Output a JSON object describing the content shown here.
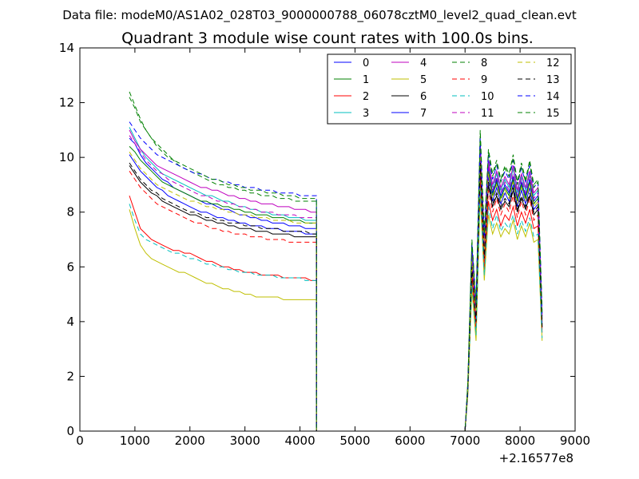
{
  "chart_data": {
    "type": "line",
    "suptitle": "Data file: modeM0/AS1A02_028T03_9000000788_06078cztM0_level2_quad_clean.evt",
    "title": "Quadrant 3 module wise count rates with 100.0s bins.",
    "xlabel": "",
    "ylabel": "",
    "x_offset_label": "+2.16577e8",
    "xlim": [
      0,
      9000
    ],
    "ylim": [
      0,
      14
    ],
    "x_ticks": [
      0,
      1000,
      2000,
      3000,
      4000,
      5000,
      6000,
      7000,
      8000,
      9000
    ],
    "x_tick_labels": [
      "0",
      "1000",
      "2000",
      "3000",
      "4000",
      "5000",
      "6000",
      "7000",
      "8000",
      "9000"
    ],
    "y_ticks": [
      0,
      2,
      4,
      6,
      8,
      10,
      12,
      14
    ],
    "y_tick_labels": [
      "0",
      "2",
      "4",
      "6",
      "8",
      "10",
      "12",
      "14"
    ],
    "grid": false,
    "legend_position": "top-right",
    "legend_columns": 4,
    "series": [
      {
        "name": "0",
        "color": "#0000ff",
        "dash": "solid",
        "pre": [
          10.7,
          10.5,
          10.1,
          9.8,
          9.6,
          9.4,
          9.2,
          9.1,
          8.9,
          8.8,
          8.7,
          8.6,
          8.5,
          8.4,
          8.3,
          8.3,
          8.2,
          8.1,
          8.1,
          8.0,
          7.9,
          7.9,
          7.8,
          7.8,
          7.7,
          7.7,
          7.6,
          7.6,
          7.6,
          7.5,
          7.5,
          7.5,
          7.4,
          7.4,
          7.4
        ],
        "post": [
          1.6,
          6.4,
          4.3,
          10.1,
          6.8,
          9.6,
          8.7,
          9.2,
          8.6,
          9.0,
          8.7,
          9.3,
          8.5,
          9.1,
          8.6,
          9.2,
          8.4,
          8.6,
          4.1
        ]
      },
      {
        "name": "1",
        "color": "#008000",
        "dash": "solid",
        "pre": [
          10.4,
          10.2,
          9.9,
          9.7,
          9.5,
          9.3,
          9.1,
          9.0,
          8.9,
          8.8,
          8.7,
          8.6,
          8.5,
          8.4,
          8.4,
          8.3,
          8.3,
          8.2,
          8.2,
          8.1,
          8.1,
          8.0,
          8.0,
          7.9,
          7.9,
          7.9,
          7.8,
          7.8,
          7.8,
          7.7,
          7.7,
          7.7,
          7.6,
          7.6,
          7.6
        ],
        "post": [
          1.6,
          6.3,
          4.2,
          10.2,
          6.7,
          9.5,
          8.6,
          9.1,
          8.5,
          8.9,
          8.6,
          9.2,
          8.4,
          9.0,
          8.5,
          9.1,
          8.3,
          8.5,
          4.0
        ]
      },
      {
        "name": "2",
        "color": "#ff0000",
        "dash": "solid",
        "pre": [
          8.6,
          8.0,
          7.4,
          7.2,
          7.0,
          6.9,
          6.8,
          6.7,
          6.6,
          6.6,
          6.5,
          6.5,
          6.4,
          6.3,
          6.2,
          6.2,
          6.1,
          6.0,
          6.0,
          5.9,
          5.9,
          5.8,
          5.8,
          5.8,
          5.7,
          5.7,
          5.7,
          5.7,
          5.6,
          5.6,
          5.6,
          5.6,
          5.6,
          5.5,
          5.5
        ],
        "post": [
          1.4,
          5.6,
          3.6,
          9.1,
          5.9,
          8.4,
          7.7,
          8.1,
          7.5,
          7.9,
          7.7,
          8.2,
          7.5,
          8.0,
          7.6,
          8.1,
          7.4,
          7.5,
          3.6
        ]
      },
      {
        "name": "3",
        "color": "#00bfbf",
        "dash": "solid",
        "pre": [
          11.1,
          10.7,
          10.3,
          10.0,
          9.8,
          9.6,
          9.4,
          9.3,
          9.2,
          9.1,
          9.0,
          8.9,
          8.8,
          8.7,
          8.6,
          8.6,
          8.5,
          8.4,
          8.4,
          8.3,
          8.2,
          8.2,
          8.1,
          8.1,
          8.0,
          8.0,
          7.9,
          7.9,
          7.9,
          7.8,
          7.8,
          7.8,
          7.7,
          7.7,
          7.7
        ],
        "post": [
          1.6,
          6.6,
          4.4,
          10.5,
          6.9,
          9.8,
          8.9,
          9.4,
          8.8,
          9.2,
          8.9,
          9.6,
          8.7,
          9.3,
          8.8,
          9.4,
          8.6,
          8.8,
          4.2
        ]
      },
      {
        "name": "4",
        "color": "#bf00bf",
        "dash": "solid",
        "pre": [
          11.0,
          10.6,
          10.3,
          10.1,
          9.9,
          9.7,
          9.6,
          9.5,
          9.4,
          9.3,
          9.2,
          9.1,
          9.0,
          8.9,
          8.9,
          8.8,
          8.8,
          8.7,
          8.6,
          8.6,
          8.5,
          8.5,
          8.4,
          8.4,
          8.3,
          8.3,
          8.3,
          8.2,
          8.2,
          8.2,
          8.1,
          8.1,
          8.1,
          8.0,
          8.0
        ],
        "post": [
          1.7,
          6.7,
          4.5,
          10.6,
          7.0,
          9.9,
          9.0,
          9.5,
          8.9,
          9.3,
          9.0,
          9.7,
          8.8,
          9.4,
          8.9,
          9.5,
          8.7,
          8.9,
          4.2
        ]
      },
      {
        "name": "5",
        "color": "#bfbf00",
        "dash": "solid",
        "pre": [
          8.1,
          7.4,
          6.8,
          6.5,
          6.3,
          6.2,
          6.1,
          6.0,
          5.9,
          5.8,
          5.8,
          5.7,
          5.6,
          5.5,
          5.4,
          5.4,
          5.3,
          5.2,
          5.2,
          5.1,
          5.1,
          5.0,
          5.0,
          4.9,
          4.9,
          4.9,
          4.9,
          4.9,
          4.8,
          4.8,
          4.8,
          4.8,
          4.8,
          4.8,
          4.8
        ],
        "post": [
          1.3,
          5.2,
          3.3,
          8.6,
          5.5,
          7.9,
          7.2,
          7.6,
          7.1,
          7.4,
          7.2,
          7.7,
          7.0,
          7.5,
          7.1,
          7.6,
          6.9,
          7.0,
          3.3
        ]
      },
      {
        "name": "6",
        "color": "#000000",
        "dash": "solid",
        "pre": [
          9.7,
          9.4,
          9.1,
          8.9,
          8.7,
          8.6,
          8.4,
          8.3,
          8.2,
          8.1,
          8.0,
          7.9,
          7.9,
          7.8,
          7.7,
          7.7,
          7.6,
          7.6,
          7.5,
          7.5,
          7.4,
          7.4,
          7.4,
          7.3,
          7.3,
          7.3,
          7.2,
          7.2,
          7.2,
          7.2,
          7.1,
          7.1,
          7.1,
          7.1,
          7.1
        ],
        "post": [
          1.5,
          6.0,
          4.0,
          9.7,
          6.3,
          9.0,
          8.2,
          8.6,
          8.1,
          8.4,
          8.2,
          8.8,
          8.0,
          8.5,
          8.1,
          8.6,
          7.9,
          8.1,
          3.8
        ]
      },
      {
        "name": "7",
        "color": "#0000ff",
        "dash": "solid",
        "pre": [
          10.1,
          9.8,
          9.5,
          9.3,
          9.1,
          8.9,
          8.8,
          8.6,
          8.5,
          8.4,
          8.3,
          8.2,
          8.1,
          8.0,
          8.0,
          7.9,
          7.8,
          7.8,
          7.7,
          7.7,
          7.6,
          7.6,
          7.5,
          7.5,
          7.5,
          7.4,
          7.4,
          7.4,
          7.3,
          7.3,
          7.3,
          7.3,
          7.2,
          7.2,
          7.2
        ],
        "post": [
          1.6,
          6.2,
          4.1,
          9.9,
          6.5,
          9.3,
          8.4,
          8.9,
          8.3,
          8.7,
          8.4,
          9.0,
          8.2,
          8.8,
          8.3,
          8.9,
          8.1,
          8.3,
          3.9
        ]
      },
      {
        "name": "8",
        "color": "#008000",
        "dash": "dashed",
        "pre": [
          12.4,
          11.9,
          11.4,
          11.0,
          10.7,
          10.4,
          10.2,
          10.0,
          9.9,
          9.7,
          9.6,
          9.5,
          9.4,
          9.3,
          9.2,
          9.1,
          9.0,
          9.0,
          8.9,
          8.9,
          8.8,
          8.8,
          8.7,
          8.7,
          8.6,
          8.6,
          8.6,
          8.5,
          8.5,
          8.5,
          8.4,
          8.4,
          8.4,
          8.4,
          8.4
        ],
        "post": [
          1.8,
          7.0,
          4.7,
          11.0,
          7.3,
          10.3,
          9.4,
          9.9,
          9.2,
          9.7,
          9.4,
          10.1,
          9.1,
          9.8,
          9.2,
          9.9,
          9.0,
          9.2,
          4.4
        ]
      },
      {
        "name": "9",
        "color": "#ff0000",
        "dash": "dashed",
        "pre": [
          9.5,
          9.2,
          8.9,
          8.7,
          8.5,
          8.3,
          8.2,
          8.1,
          8.0,
          7.9,
          7.8,
          7.7,
          7.6,
          7.6,
          7.5,
          7.4,
          7.4,
          7.3,
          7.3,
          7.2,
          7.2,
          7.2,
          7.1,
          7.1,
          7.1,
          7.0,
          7.0,
          7.0,
          7.0,
          6.9,
          6.9,
          6.9,
          6.9,
          6.9,
          6.9
        ],
        "post": [
          1.5,
          5.9,
          3.9,
          9.5,
          6.2,
          8.8,
          8.0,
          8.5,
          7.9,
          8.3,
          8.0,
          8.6,
          7.8,
          8.4,
          7.9,
          8.5,
          7.7,
          7.9,
          3.7
        ]
      },
      {
        "name": "10",
        "color": "#00bfbf",
        "dash": "dashed",
        "pre": [
          8.3,
          7.7,
          7.2,
          7.0,
          6.9,
          6.8,
          6.7,
          6.6,
          6.5,
          6.5,
          6.4,
          6.3,
          6.3,
          6.2,
          6.1,
          6.1,
          6.0,
          6.0,
          5.9,
          5.9,
          5.8,
          5.8,
          5.8,
          5.7,
          5.7,
          5.7,
          5.7,
          5.6,
          5.6,
          5.6,
          5.6,
          5.6,
          5.5,
          5.5,
          5.5
        ],
        "post": [
          1.4,
          5.4,
          3.5,
          8.9,
          5.7,
          8.2,
          7.4,
          7.9,
          7.3,
          7.6,
          7.4,
          7.9,
          7.2,
          7.7,
          7.3,
          7.8,
          7.1,
          7.2,
          3.4
        ]
      },
      {
        "name": "11",
        "color": "#bf00bf",
        "dash": "dashed",
        "pre": [
          10.8,
          10.5,
          10.2,
          9.9,
          9.7,
          9.5,
          9.4,
          9.2,
          9.1,
          9.0,
          8.9,
          8.8,
          8.7,
          8.6,
          8.6,
          8.5,
          8.4,
          8.4,
          8.3,
          8.3,
          8.2,
          8.2,
          8.1,
          8.1,
          8.0,
          8.0,
          8.0,
          7.9,
          7.9,
          7.9,
          7.9,
          7.8,
          7.8,
          7.8,
          7.8
        ],
        "post": [
          1.6,
          6.5,
          4.3,
          10.3,
          6.8,
          9.7,
          8.8,
          9.3,
          8.7,
          9.1,
          8.8,
          9.4,
          8.6,
          9.2,
          8.7,
          9.3,
          8.5,
          8.7,
          4.1
        ]
      },
      {
        "name": "12",
        "color": "#bfbf00",
        "dash": "dashed",
        "pre": [
          10.2,
          9.9,
          9.6,
          9.4,
          9.2,
          9.0,
          8.9,
          8.8,
          8.7,
          8.6,
          8.5,
          8.4,
          8.4,
          8.3,
          8.2,
          8.2,
          8.1,
          8.1,
          8.0,
          8.0,
          7.9,
          7.9,
          7.9,
          7.8,
          7.8,
          7.8,
          7.7,
          7.7,
          7.7,
          7.7,
          7.6,
          7.6,
          7.6,
          7.6,
          7.6
        ],
        "post": [
          1.6,
          6.2,
          4.2,
          10.0,
          6.6,
          9.4,
          8.5,
          9.0,
          8.4,
          8.8,
          8.5,
          9.1,
          8.3,
          8.9,
          8.4,
          9.0,
          8.2,
          8.4,
          3.9
        ]
      },
      {
        "name": "13",
        "color": "#000000",
        "dash": "dashed",
        "pre": [
          9.8,
          9.5,
          9.2,
          9.0,
          8.8,
          8.7,
          8.5,
          8.4,
          8.3,
          8.2,
          8.1,
          8.0,
          8.0,
          7.9,
          7.8,
          7.8,
          7.7,
          7.7,
          7.6,
          7.6,
          7.6,
          7.5,
          7.5,
          7.5,
          7.4,
          7.4,
          7.4,
          7.4,
          7.3,
          7.3,
          7.3,
          7.3,
          7.3,
          7.2,
          7.2
        ],
        "post": [
          1.5,
          6.0,
          4.0,
          9.8,
          6.4,
          9.1,
          8.3,
          8.7,
          8.2,
          8.5,
          8.3,
          8.9,
          8.1,
          8.6,
          8.2,
          8.7,
          8.0,
          8.2,
          3.8
        ]
      },
      {
        "name": "14",
        "color": "#0000ff",
        "dash": "dashed",
        "pre": [
          11.3,
          11.0,
          10.7,
          10.5,
          10.3,
          10.1,
          10.0,
          9.9,
          9.8,
          9.7,
          9.6,
          9.5,
          9.4,
          9.4,
          9.3,
          9.2,
          9.2,
          9.1,
          9.1,
          9.0,
          9.0,
          8.9,
          8.9,
          8.9,
          8.8,
          8.8,
          8.8,
          8.7,
          8.7,
          8.7,
          8.7,
          8.6,
          8.6,
          8.6,
          8.6
        ],
        "post": [
          1.7,
          6.8,
          4.6,
          10.7,
          7.1,
          10.1,
          9.2,
          9.7,
          9.1,
          9.5,
          9.2,
          9.9,
          9.0,
          9.6,
          9.1,
          9.7,
          8.9,
          9.1,
          4.3
        ]
      },
      {
        "name": "15",
        "color": "#008000",
        "dash": "dashed",
        "pre": [
          12.2,
          11.8,
          11.3,
          11.0,
          10.7,
          10.5,
          10.3,
          10.1,
          9.9,
          9.8,
          9.7,
          9.6,
          9.5,
          9.4,
          9.3,
          9.2,
          9.2,
          9.1,
          9.0,
          9.0,
          8.9,
          8.9,
          8.8,
          8.8,
          8.8,
          8.7,
          8.7,
          8.7,
          8.6,
          8.6,
          8.6,
          8.5,
          8.5,
          8.5,
          8.5
        ],
        "post": [
          1.8,
          6.9,
          4.6,
          10.8,
          7.2,
          10.2,
          9.3,
          9.8,
          9.1,
          9.6,
          9.3,
          10.0,
          9.0,
          9.7,
          9.1,
          9.8,
          8.9,
          9.1,
          4.3
        ]
      }
    ]
  }
}
